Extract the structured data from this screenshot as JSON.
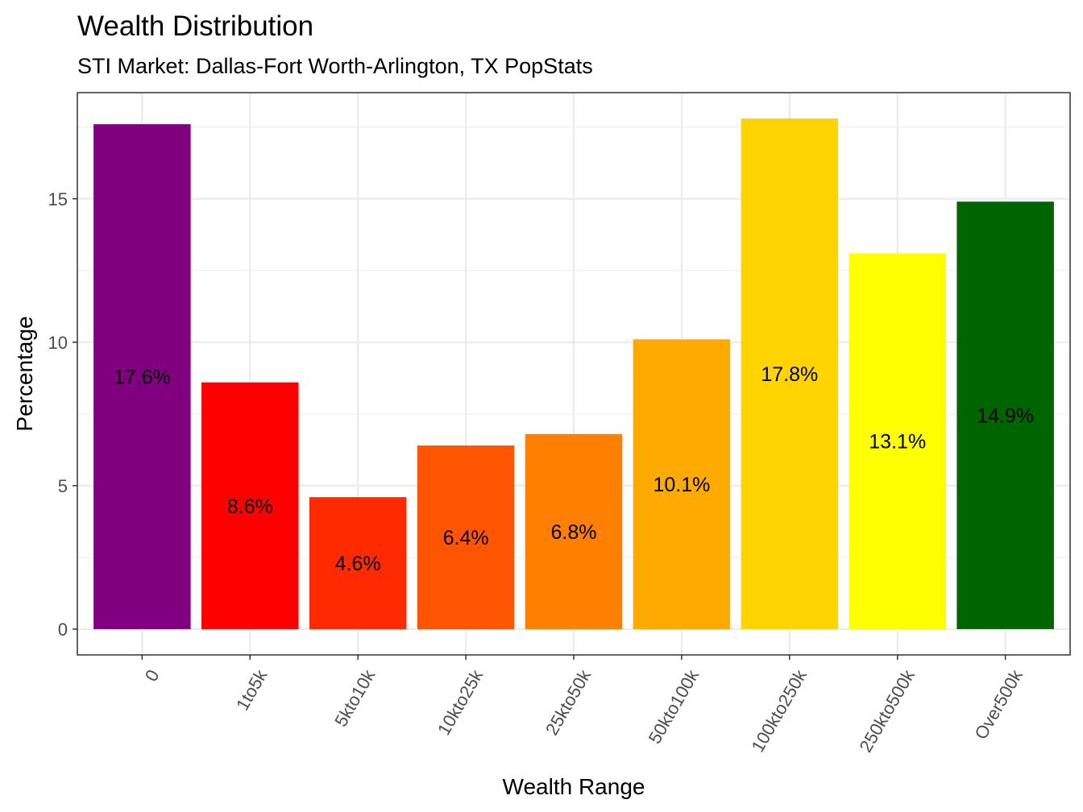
{
  "chart_data": {
    "type": "bar",
    "title": "Wealth Distribution",
    "subtitle": "STI Market: Dallas-Fort Worth-Arlington, TX PopStats",
    "xlabel": "Wealth Range",
    "ylabel": "Percentage",
    "categories": [
      "0",
      "1to5k",
      "5kto10k",
      "10kto25k",
      "25kto50k",
      "50kto100k",
      "100kto250k",
      "250kto500k",
      "Over500k"
    ],
    "values": [
      17.6,
      8.6,
      4.6,
      6.4,
      6.8,
      10.1,
      17.8,
      13.1,
      14.9
    ],
    "data_labels": [
      "17.6%",
      "8.6%",
      "4.6%",
      "6.4%",
      "6.8%",
      "10.1%",
      "17.8%",
      "13.1%",
      "14.9%"
    ],
    "colors": [
      "#800080",
      "#ff0000",
      "#ff2a00",
      "#ff5500",
      "#ff7f00",
      "#ffaa00",
      "#ffd400",
      "#ffff00",
      "#006400"
    ],
    "ylim": [
      -0.9,
      18.7
    ],
    "yticks": [
      0,
      5,
      10,
      15
    ],
    "ytick_labels": [
      "0",
      "5",
      "10",
      "15"
    ],
    "grid": true,
    "legend": "none"
  }
}
